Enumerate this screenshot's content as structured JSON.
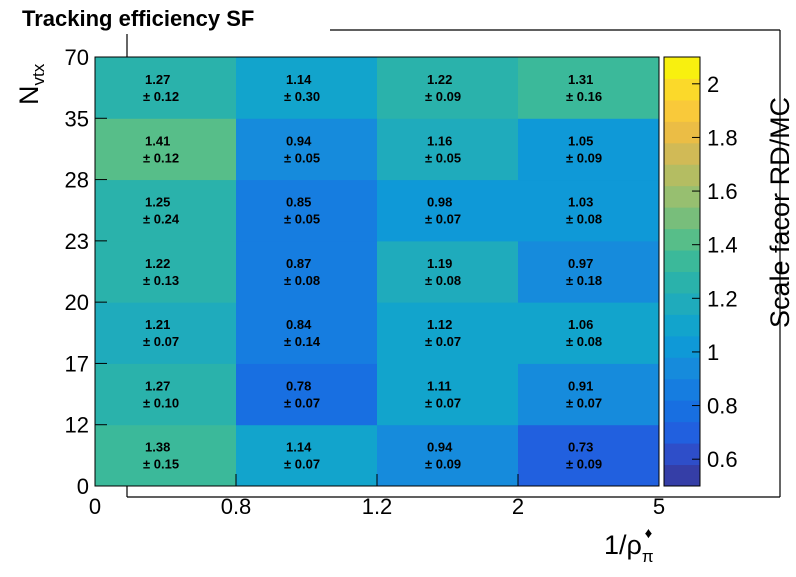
{
  "title": "Tracking efficiency SF",
  "colors": {
    "palette": [
      "#353ea7",
      "#2e4ec9",
      "#2160df",
      "#186fe1",
      "#167de0",
      "#168bdc",
      "#0f99d7",
      "#12a4cc",
      "#1fabbc",
      "#2ab2ab",
      "#3bb99a",
      "#57be89",
      "#78be7b",
      "#97bf70",
      "#b4bd62",
      "#d1ba56",
      "#ebbd45",
      "#f9c93a",
      "#fbd92a",
      "#f8f00f"
    ]
  },
  "chart_data": {
    "type": "heatmap",
    "title": "Tracking efficiency SF",
    "xlabel": "1/ρπ♦",
    "xlabel_main": "1/ρ",
    "xlabel_sub": "π",
    "xlabel_sup": "♦",
    "ylabel": "Nvtx",
    "ylabel_main": "N",
    "ylabel_sub": "vtx",
    "zlabel": "Scale facor RD/MC",
    "x_bin_edges": [
      "0",
      "0.8",
      "1.2",
      "2",
      "5"
    ],
    "y_bin_edges": [
      "0",
      "12",
      "17",
      "20",
      "23",
      "28",
      "35",
      "70"
    ],
    "zlim": [
      0.5,
      2.1
    ],
    "z_ticks": [
      "0.6",
      "0.8",
      "1",
      "1.2",
      "1.4",
      "1.6",
      "1.8",
      "2"
    ],
    "z_tick_values": [
      0.6,
      0.8,
      1.0,
      1.2,
      1.4,
      1.6,
      1.8,
      2.0
    ],
    "rows": [
      {
        "values": [
          1.38,
          1.14,
          0.94,
          0.73
        ],
        "value_labels": [
          "1.38",
          "1.14",
          "0.94",
          "0.73"
        ],
        "error_labels": [
          "± 0.15",
          "± 0.07",
          "± 0.09",
          "± 0.09"
        ]
      },
      {
        "values": [
          1.27,
          0.78,
          1.11,
          0.91
        ],
        "value_labels": [
          "1.27",
          "0.78",
          "1.11",
          "0.91"
        ],
        "error_labels": [
          "± 0.10",
          "± 0.07",
          "± 0.07",
          "± 0.07"
        ]
      },
      {
        "values": [
          1.21,
          0.84,
          1.12,
          1.06
        ],
        "value_labels": [
          "1.21",
          "0.84",
          "1.12",
          "1.06"
        ],
        "error_labels": [
          "± 0.07",
          "± 0.14",
          "± 0.07",
          "± 0.08"
        ]
      },
      {
        "values": [
          1.22,
          0.87,
          1.19,
          0.97
        ],
        "value_labels": [
          "1.22",
          "0.87",
          "1.19",
          "0.97"
        ],
        "error_labels": [
          "± 0.13",
          "± 0.08",
          "± 0.08",
          "± 0.18"
        ]
      },
      {
        "values": [
          1.25,
          0.85,
          0.98,
          1.03
        ],
        "value_labels": [
          "1.25",
          "0.85",
          "0.98",
          "1.03"
        ],
        "error_labels": [
          "± 0.24",
          "± 0.05",
          "± 0.07",
          "± 0.08"
        ]
      },
      {
        "values": [
          1.41,
          0.94,
          1.16,
          1.05
        ],
        "value_labels": [
          "1.41",
          "0.94",
          "1.16",
          "1.05"
        ],
        "error_labels": [
          "± 0.12",
          "± 0.05",
          "± 0.05",
          "± 0.09"
        ]
      },
      {
        "values": [
          1.27,
          1.14,
          1.22,
          1.31
        ],
        "value_labels": [
          "1.27",
          "1.14",
          "1.22",
          "1.31"
        ],
        "error_labels": [
          "± 0.12",
          "± 0.30",
          "± 0.09",
          "± 0.16"
        ]
      }
    ]
  }
}
